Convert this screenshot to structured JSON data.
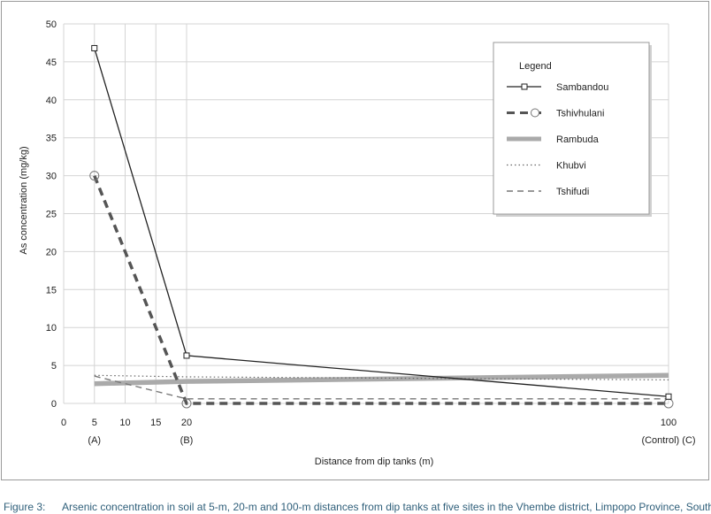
{
  "chart_data": {
    "type": "line",
    "xlabel": "Distance from dip tanks (m)",
    "ylabel": "As concentration (mg/kg)",
    "xlim": [
      0,
      100
    ],
    "ylim": [
      0,
      50
    ],
    "x_ticks": [
      "0",
      "5",
      "10",
      "15",
      "20",
      "100"
    ],
    "y_ticks": [
      "0",
      "5",
      "10",
      "15",
      "20",
      "25",
      "30",
      "35",
      "40",
      "45",
      "50"
    ],
    "x_markers": [
      {
        "x": 5,
        "label": "(A)"
      },
      {
        "x": 20,
        "label": "(B)"
      },
      {
        "x": 100,
        "label": "(Control)  (C)"
      }
    ],
    "grid": true,
    "legend_title": "Legend",
    "legend_position": "top-right",
    "series": [
      {
        "name": "Sambandou",
        "x": [
          5,
          20,
          100
        ],
        "values": [
          46.8,
          6.3,
          0.9
        ],
        "color": "#222222",
        "style": "solid-square"
      },
      {
        "name": "Tshivhulani",
        "x": [
          5,
          20,
          100
        ],
        "values": [
          30.0,
          0.0,
          0.0
        ],
        "color": "#555555",
        "style": "dashed-circle"
      },
      {
        "name": "Rambuda",
        "x": [
          5,
          20,
          100
        ],
        "values": [
          2.6,
          2.9,
          3.7
        ],
        "color": "#aaaaaa",
        "style": "thick"
      },
      {
        "name": "Khubvi",
        "x": [
          5,
          20,
          100
        ],
        "values": [
          3.7,
          3.5,
          3.1
        ],
        "color": "#666666",
        "style": "dotted"
      },
      {
        "name": "Tshifudi",
        "x": [
          5,
          20,
          100
        ],
        "values": [
          3.6,
          0.6,
          0.6
        ],
        "color": "#777777",
        "style": "dashed"
      }
    ]
  },
  "caption": {
    "label": "Figure 3:",
    "text": "Arsenic concentration in soil at 5-m, 20-m and 100-m distances from dip tanks at five sites in the Vhembe district, Limpopo Province, South Africa."
  }
}
